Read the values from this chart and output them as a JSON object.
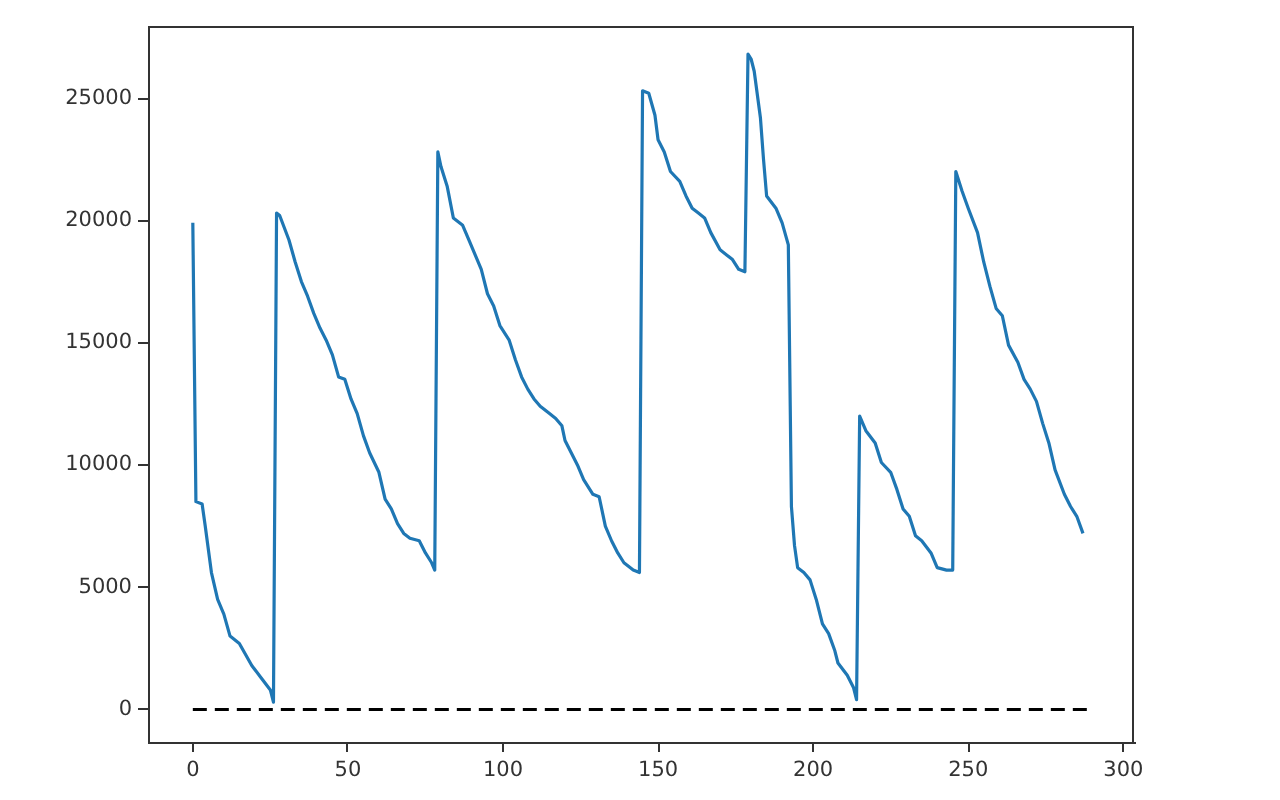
{
  "chart_data": {
    "type": "line",
    "xlim": [
      -14.45,
      303.45
    ],
    "xticks": [
      0,
      50,
      100,
      150,
      200,
      250,
      300
    ],
    "ylim": [
      -1330,
      27950
    ],
    "yticks": [
      0,
      5000,
      10000,
      15000,
      20000,
      25000
    ],
    "grid": false,
    "legend": false,
    "series": [
      {
        "color": "#1f77b4",
        "x": [
          0,
          1,
          3,
          4,
          6,
          8,
          10,
          12,
          15,
          19,
          22,
          25,
          26,
          27,
          28,
          31,
          33,
          35,
          37,
          39,
          41,
          43,
          45,
          47,
          49,
          51,
          53,
          55,
          57,
          60,
          62,
          64,
          66,
          68,
          70,
          73,
          75,
          77,
          78,
          79,
          80,
          82,
          84,
          87,
          89,
          91,
          93,
          95,
          97,
          99,
          102,
          104,
          106,
          108,
          110,
          112,
          115,
          117,
          119,
          120,
          122,
          124,
          126,
          129,
          131,
          133,
          135,
          137,
          139,
          142,
          144,
          145,
          147,
          149,
          150,
          152,
          154,
          157,
          159,
          161,
          163,
          165,
          167,
          170,
          172,
          174,
          176,
          178,
          179,
          180,
          181,
          183,
          184,
          185,
          188,
          190,
          192,
          193,
          194,
          195,
          197,
          199,
          201,
          203,
          205,
          207,
          208,
          211,
          213,
          214,
          215,
          217,
          220,
          222,
          225,
          227,
          229,
          231,
          233,
          235,
          238,
          240,
          243,
          245,
          246,
          248,
          250,
          253,
          255,
          257,
          259,
          261,
          263,
          266,
          268,
          270,
          272,
          274,
          276,
          278,
          281,
          283,
          285,
          287
        ],
        "values": [
          19900,
          8500,
          8400,
          7500,
          5600,
          4500,
          3900,
          3000,
          2700,
          1800,
          1300,
          800,
          300,
          20300,
          20200,
          19200,
          18300,
          17500,
          16900,
          16200,
          15600,
          15100,
          14500,
          13600,
          13500,
          12700,
          12100,
          11200,
          10500,
          9700,
          8600,
          8200,
          7600,
          7200,
          7000,
          6900,
          6400,
          6000,
          5700,
          22800,
          22200,
          21400,
          20100,
          19800,
          19200,
          18600,
          18000,
          17000,
          16500,
          15700,
          15100,
          14300,
          13600,
          13100,
          12700,
          12400,
          12100,
          11900,
          11600,
          11000,
          10500,
          10000,
          9400,
          8800,
          8700,
          7500,
          6900,
          6400,
          6000,
          5700,
          5600,
          25300,
          25200,
          24300,
          23300,
          22800,
          22000,
          21600,
          21000,
          20500,
          20300,
          20100,
          19500,
          18800,
          18600,
          18400,
          18000,
          17900,
          26800,
          26600,
          26100,
          24200,
          22500,
          21000,
          20500,
          19900,
          19000,
          8300,
          6700,
          5800,
          5600,
          5300,
          4500,
          3500,
          3100,
          2400,
          1900,
          1400,
          900,
          400,
          12000,
          11400,
          10900,
          10100,
          9700,
          9000,
          8200,
          7900,
          7100,
          6900,
          6400,
          5800,
          5700,
          5700,
          22000,
          21200,
          20500,
          19500,
          18300,
          17300,
          16400,
          16100,
          14900,
          14200,
          13500,
          13100,
          12600,
          11700,
          10900,
          9800,
          8800,
          8300,
          7900,
          7200
        ]
      },
      {
        "color": "#000000",
        "line_style": "dashed",
        "x": [
          0,
          289
        ],
        "values": [
          0,
          0
        ]
      }
    ]
  }
}
